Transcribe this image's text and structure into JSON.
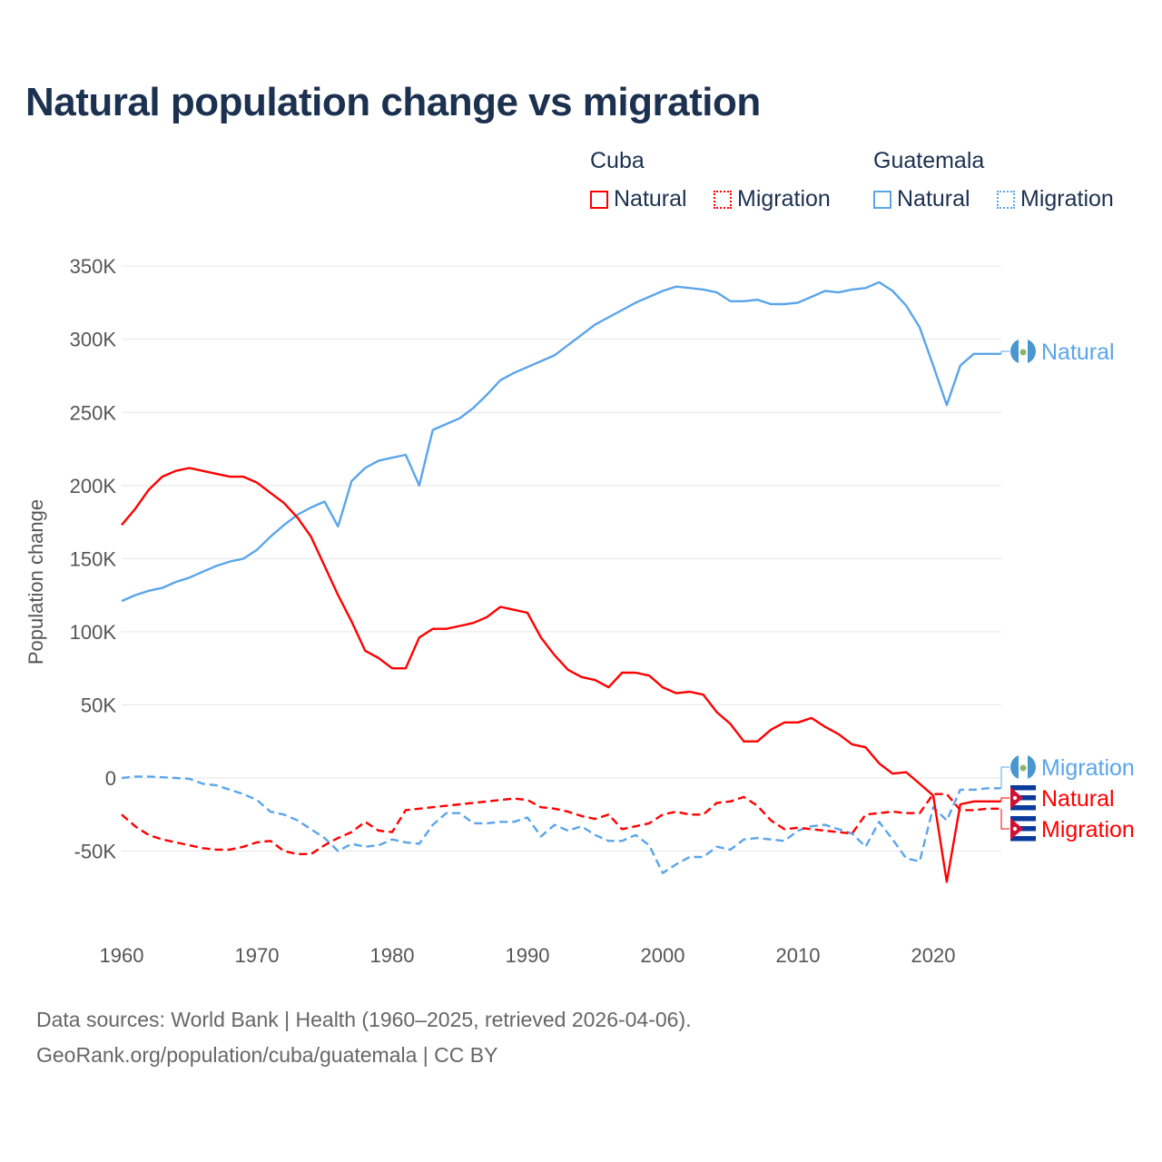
{
  "title": "Natural population change vs migration",
  "legend": {
    "groups": [
      {
        "country": "Cuba",
        "items": [
          {
            "label": "Natural",
            "style": "solid"
          },
          {
            "label": "Migration",
            "style": "dotted"
          }
        ]
      },
      {
        "country": "Guatemala",
        "items": [
          {
            "label": "Natural",
            "style": "solid"
          },
          {
            "label": "Migration",
            "style": "dotted"
          }
        ]
      }
    ]
  },
  "footer": {
    "line1": "Data sources: World Bank | Health (1960–2025, retrieved 2026-04-06).",
    "line2": "GeoRank.org/population/cuba/guatemala | CC BY"
  },
  "chart_data": {
    "type": "line",
    "title": "Natural population change vs migration",
    "xlabel": "",
    "ylabel": "Population change",
    "xlim": [
      1960,
      2025
    ],
    "ylim": [
      -90000,
      350000
    ],
    "x_ticks": [
      1960,
      1970,
      1980,
      1990,
      2000,
      2010,
      2020
    ],
    "x_tick_labels": [
      "1960",
      "1970",
      "1980",
      "1990",
      "2000",
      "2010",
      "2020"
    ],
    "y_ticks": [
      -50000,
      0,
      50000,
      100000,
      150000,
      200000,
      250000,
      300000,
      350000
    ],
    "y_tick_labels": [
      "-50K",
      "0",
      "50K",
      "100K",
      "150K",
      "200K",
      "250K",
      "300K",
      "350K"
    ],
    "grid": true,
    "legend_position": "top-right",
    "x_start": 1960,
    "series": [
      {
        "name": "Guatemala Natural",
        "end_label": "Natural",
        "color": "#5aa5ea",
        "dash": "solid",
        "values": [
          121,
          125,
          128,
          130,
          134,
          137,
          141,
          145,
          148,
          150,
          156,
          165,
          173,
          180,
          185,
          189,
          172,
          203,
          212,
          217,
          219,
          221,
          200,
          238,
          242,
          246,
          253,
          262,
          272,
          277,
          281,
          285,
          289,
          296,
          303,
          310,
          315,
          320,
          325,
          329,
          333,
          336,
          335,
          334,
          332,
          326,
          326,
          327,
          324,
          324,
          325,
          329,
          333,
          332,
          334,
          335,
          339,
          333,
          323,
          308,
          282,
          255,
          282,
          290,
          290,
          290
        ]
      },
      {
        "name": "Guatemala Migration",
        "end_label": "Migration",
        "color": "#5aa5ea",
        "dash": "dashed",
        "values": [
          0,
          1,
          1,
          0.5,
          0,
          -0.5,
          -4,
          -5,
          -8,
          -11,
          -15,
          -23,
          -25,
          -29,
          -35,
          -41,
          -50,
          -45,
          -47,
          -46,
          -42,
          -44,
          -45,
          -32,
          -24,
          -24,
          -31,
          -31,
          -30,
          -30,
          -27,
          -40,
          -32,
          -36,
          -33,
          -39,
          -43,
          -43,
          -39,
          -46,
          -65,
          -59,
          -54,
          -54,
          -47,
          -49,
          -42,
          -41,
          -42,
          -43,
          -36,
          -33,
          -32,
          -35,
          -38,
          -47,
          -30,
          -42,
          -55,
          -57,
          -20,
          -29,
          -8,
          -8,
          -7,
          -7
        ]
      },
      {
        "name": "Cuba Natural",
        "end_label": "Natural",
        "color": "#ff0000",
        "dash": "solid",
        "values": [
          173,
          184,
          197,
          206,
          210,
          212,
          210,
          208,
          206,
          206,
          202,
          195,
          188,
          178,
          165,
          145,
          125,
          107,
          87,
          82,
          75,
          75,
          96,
          102,
          102,
          104,
          106,
          110,
          117,
          115,
          113,
          96,
          84,
          74,
          69,
          67,
          62,
          72,
          72,
          70,
          62,
          58,
          59,
          57,
          45,
          37,
          25,
          25,
          33,
          38,
          38,
          41,
          35,
          30,
          23,
          21,
          10,
          3,
          4,
          -4,
          -12,
          -71,
          -18,
          -16,
          -16,
          -16
        ]
      },
      {
        "name": "Cuba Migration",
        "end_label": "Migration",
        "color": "#ff0000",
        "dash": "dashed",
        "values": [
          -25,
          -33,
          -39,
          -42,
          -44,
          -46,
          -48,
          -49,
          -49,
          -47,
          -44,
          -43,
          -50,
          -52,
          -52,
          -46,
          -41,
          -37,
          -30,
          -36,
          -37,
          -22,
          -21,
          -20,
          -19,
          -18,
          -17,
          -16,
          -15,
          -14,
          -15,
          -20,
          -21,
          -23,
          -26,
          -28,
          -25,
          -35,
          -33,
          -31,
          -25,
          -23,
          -25,
          -25,
          -17,
          -16,
          -13,
          -19,
          -29,
          -35,
          -34,
          -35,
          -36,
          -37,
          -38,
          -25,
          -24,
          -23,
          -24,
          -24,
          -11,
          -11,
          -22,
          -22,
          -21,
          -21
        ]
      }
    ],
    "value_unit": "thousands"
  }
}
